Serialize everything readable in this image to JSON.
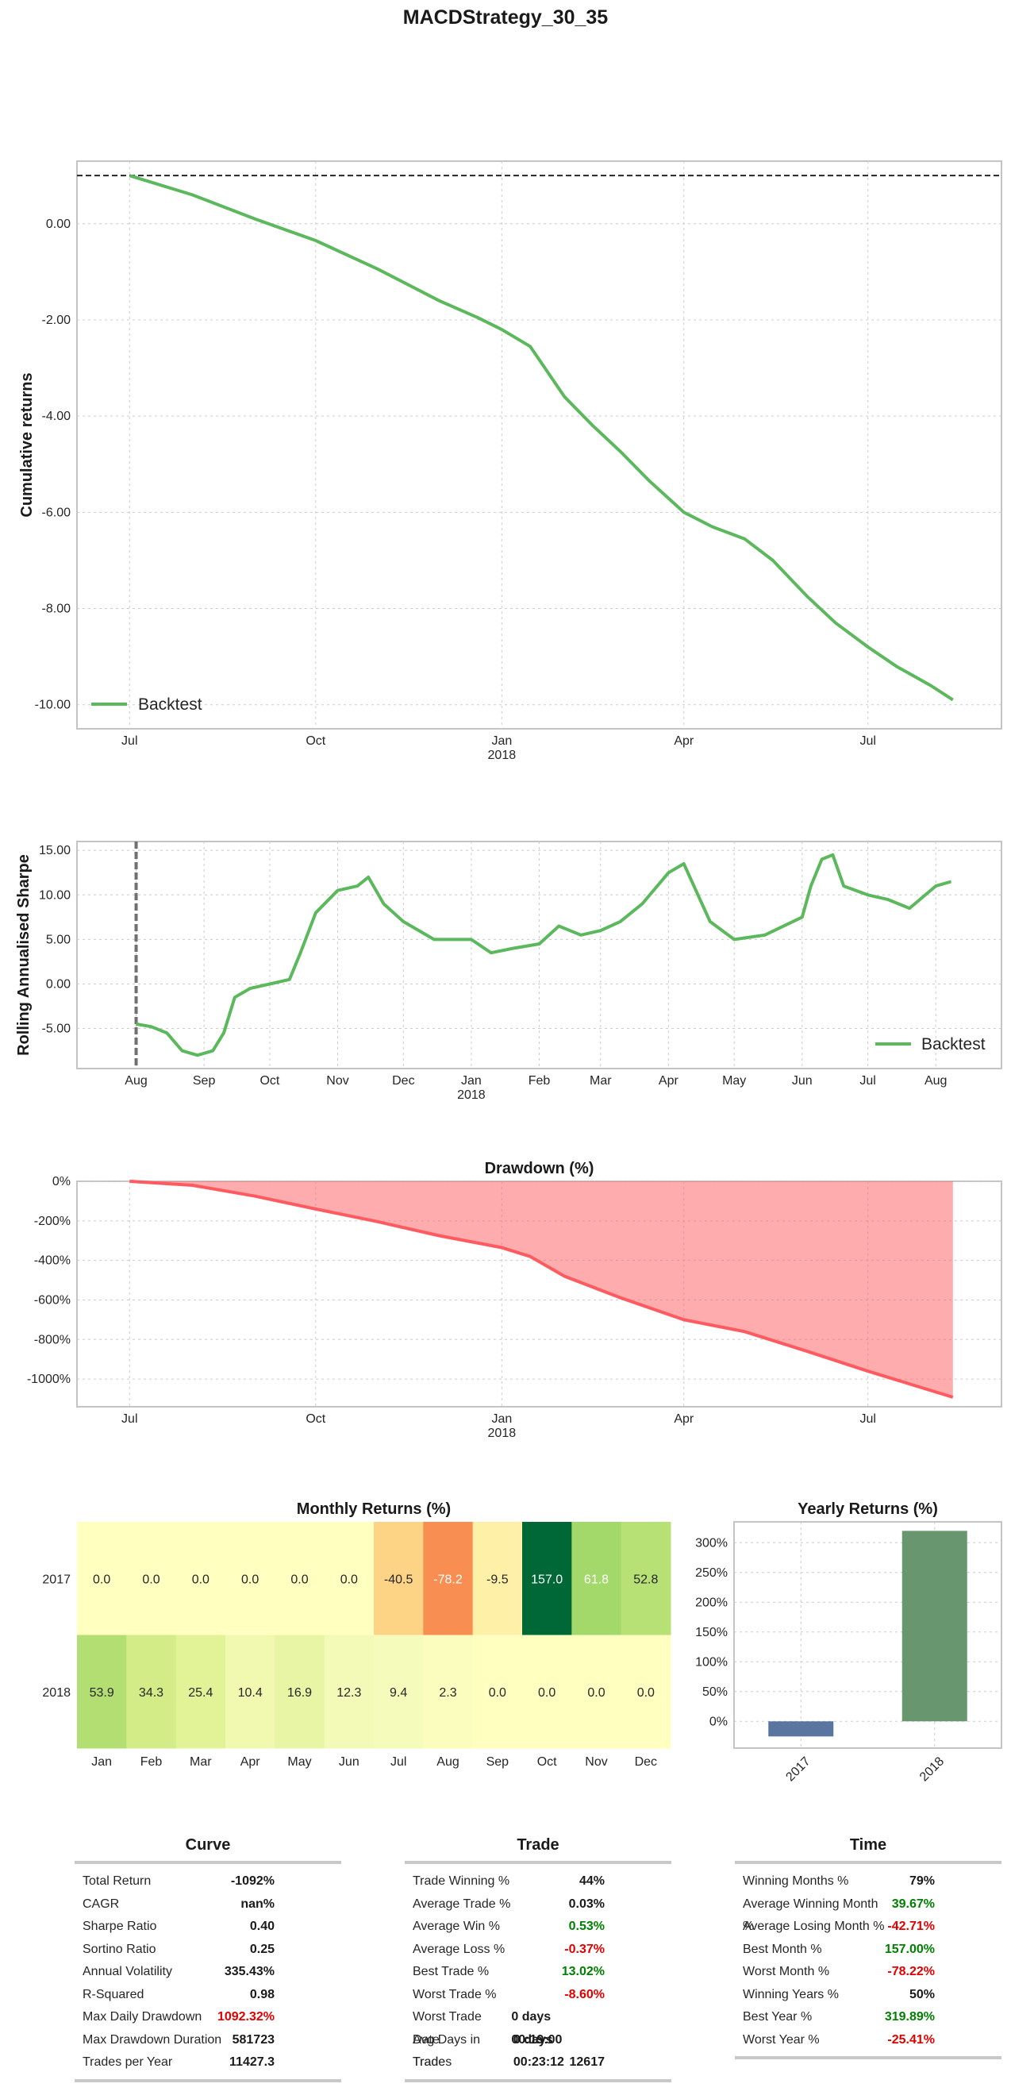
{
  "title": "MACDStrategy_30_35",
  "chart_data": [
    {
      "name": "cumulative-returns",
      "type": "line",
      "ylabel": "Cumulative returns",
      "yticks": [
        "0.00",
        "-2.00",
        "-4.00",
        "-6.00",
        "-8.00",
        "-10.00"
      ],
      "xticks": [
        "Jul",
        "Oct",
        "Jan",
        "Apr",
        "Jul"
      ],
      "xsub": "2018",
      "ylim": [
        -10.5,
        1.3
      ],
      "reference_line": 1.0,
      "legend": "Backtest",
      "legend_position": "lower-left",
      "grid": true,
      "color": "#5cb85c",
      "series": [
        {
          "name": "Backtest",
          "x": [
            "2017-07-01",
            "2017-08-01",
            "2017-09-01",
            "2017-10-01",
            "2017-11-01",
            "2017-12-01",
            "2017-12-20",
            "2018-01-01",
            "2018-01-15",
            "2018-02-01",
            "2018-02-15",
            "2018-03-01",
            "2018-03-15",
            "2018-04-01",
            "2018-04-15",
            "2018-05-01",
            "2018-05-15",
            "2018-06-01",
            "2018-06-15",
            "2018-07-01",
            "2018-07-15",
            "2018-08-01",
            "2018-08-12"
          ],
          "y": [
            1.0,
            0.6,
            0.1,
            -0.35,
            -0.95,
            -1.6,
            -1.95,
            -2.2,
            -2.55,
            -3.6,
            -4.2,
            -4.75,
            -5.35,
            -6.0,
            -6.3,
            -6.55,
            -7.0,
            -7.75,
            -8.3,
            -8.8,
            -9.2,
            -9.6,
            -9.9
          ]
        }
      ]
    },
    {
      "name": "rolling-sharpe",
      "type": "line",
      "ylabel": "Rolling Annualised Sharpe",
      "yticks": [
        "15.00",
        "10.00",
        "5.00",
        "0.00",
        "-5.00"
      ],
      "xticks": [
        "Aug",
        "Sep",
        "Oct",
        "Nov",
        "Dec",
        "Jan",
        "Feb",
        "Mar",
        "Apr",
        "May",
        "Jun",
        "Jul",
        "Aug"
      ],
      "xsub": "2018",
      "ylim": [
        -9.5,
        16
      ],
      "legend": "Backtest",
      "legend_position": "lower-right",
      "grid": true,
      "color": "#5cb85c",
      "series": [
        {
          "name": "Backtest",
          "x": [
            "2017-08-01",
            "2017-08-08",
            "2017-08-15",
            "2017-08-22",
            "2017-08-29",
            "2017-09-05",
            "2017-09-10",
            "2017-09-15",
            "2017-09-22",
            "2017-10-01",
            "2017-10-10",
            "2017-10-15",
            "2017-10-22",
            "2017-11-01",
            "2017-11-10",
            "2017-11-15",
            "2017-11-22",
            "2017-12-01",
            "2017-12-15",
            "2018-01-01",
            "2018-01-10",
            "2018-01-20",
            "2018-02-01",
            "2018-02-10",
            "2018-02-20",
            "2018-03-01",
            "2018-03-10",
            "2018-03-20",
            "2018-04-01",
            "2018-04-08",
            "2018-04-20",
            "2018-05-01",
            "2018-05-15",
            "2018-06-01",
            "2018-06-05",
            "2018-06-10",
            "2018-06-15",
            "2018-06-20",
            "2018-07-01",
            "2018-07-10",
            "2018-07-20",
            "2018-08-01",
            "2018-08-08"
          ],
          "y": [
            -4.5,
            -4.8,
            -5.5,
            -7.5,
            -8.0,
            -7.5,
            -5.5,
            -1.5,
            -0.5,
            0.0,
            0.5,
            3.5,
            8.0,
            10.5,
            11.0,
            12.0,
            9.0,
            7.0,
            5.0,
            5.0,
            3.5,
            4.0,
            4.5,
            6.5,
            5.5,
            6.0,
            7.0,
            9.0,
            12.5,
            13.5,
            7.0,
            5.0,
            5.5,
            7.5,
            11.0,
            14.0,
            14.5,
            11.0,
            10.0,
            9.5,
            8.5,
            11.0,
            11.5
          ]
        }
      ],
      "marker_line_x": "2017-08-01"
    },
    {
      "name": "drawdown",
      "type": "area",
      "title": "Drawdown (%)",
      "yticks": [
        "0%",
        "-200%",
        "-400%",
        "-600%",
        "-800%",
        "-1000%"
      ],
      "xticks": [
        "Jul",
        "Oct",
        "Jan",
        "Apr",
        "Jul"
      ],
      "xsub": "2018",
      "ylim": [
        -1140,
        0
      ],
      "grid": true,
      "color": "#ff5a5f",
      "series": [
        {
          "name": "",
          "x": [
            "2017-07-01",
            "2017-08-01",
            "2017-09-01",
            "2017-10-01",
            "2017-11-01",
            "2017-12-01",
            "2018-01-01",
            "2018-01-15",
            "2018-02-01",
            "2018-03-01",
            "2018-04-01",
            "2018-05-01",
            "2018-06-01",
            "2018-07-01",
            "2018-08-12"
          ],
          "y": [
            0,
            -20,
            -75,
            -140,
            -205,
            -275,
            -335,
            -380,
            -480,
            -590,
            -700,
            -760,
            -860,
            -960,
            -1092
          ]
        }
      ]
    },
    {
      "name": "monthly-returns",
      "type": "heatmap",
      "title": "Monthly Returns (%)",
      "rows": [
        "2017",
        "2018"
      ],
      "columns": [
        "Jan",
        "Feb",
        "Mar",
        "Apr",
        "May",
        "Jun",
        "Jul",
        "Aug",
        "Sep",
        "Oct",
        "Nov",
        "Dec"
      ],
      "values": [
        [
          "0.0",
          "0.0",
          "0.0",
          "0.0",
          "0.0",
          "0.0",
          "-40.5",
          "-78.2",
          "-9.5",
          "157.0",
          "61.8",
          "52.8"
        ],
        [
          "53.9",
          "34.3",
          "25.4",
          "10.4",
          "16.9",
          "12.3",
          "9.4",
          "2.3",
          "0.0",
          "0.0",
          "0.0",
          "0.0"
        ]
      ],
      "colors": [
        [
          "#ffffc0",
          "#ffffc0",
          "#ffffc0",
          "#ffffc0",
          "#ffffc0",
          "#ffffc0",
          "#fdd485",
          "#f88e52",
          "#fff0a8",
          "#006837",
          "#a3d86a",
          "#b7e075"
        ],
        [
          "#b3df72",
          "#d3ec87",
          "#e2f397",
          "#f1f9b1",
          "#e8f5a4",
          "#f3fab7",
          "#f5fbba",
          "#fbfdbe",
          "#ffffc0",
          "#ffffc0",
          "#ffffc0",
          "#ffffc0"
        ]
      ],
      "text_colors": [
        [
          "#262626",
          "#262626",
          "#262626",
          "#262626",
          "#262626",
          "#262626",
          "#262626",
          "#ffffff",
          "#262626",
          "#ffffff",
          "#ffffff",
          "#262626"
        ],
        [
          "#262626",
          "#262626",
          "#262626",
          "#262626",
          "#262626",
          "#262626",
          "#262626",
          "#262626",
          "#262626",
          "#262626",
          "#262626",
          "#262626"
        ]
      ]
    },
    {
      "name": "yearly-returns",
      "type": "bar",
      "title": "Yearly Returns (%)",
      "categories": [
        "2017",
        "2018"
      ],
      "values": [
        -25.41,
        319.89
      ],
      "yticks": [
        "300%",
        "250%",
        "200%",
        "150%",
        "100%",
        "50%",
        "0%"
      ],
      "ylim": [
        -45,
        335
      ],
      "colors": [
        "#5a76a0",
        "#68966e"
      ],
      "grid": true
    }
  ],
  "stats": {
    "curve": {
      "title": "Curve",
      "rows": [
        {
          "label": "Total Return",
          "value": "-1092%",
          "color": "#1a1a1a"
        },
        {
          "label": "CAGR",
          "value": "nan%",
          "color": "#1a1a1a"
        },
        {
          "label": "Sharpe Ratio",
          "value": "0.40",
          "color": "#1a1a1a"
        },
        {
          "label": "Sortino Ratio",
          "value": "0.25",
          "color": "#1a1a1a"
        },
        {
          "label": "Annual Volatility",
          "value": "335.43%",
          "color": "#1a1a1a"
        },
        {
          "label": "R-Squared",
          "value": "0.98",
          "color": "#1a1a1a"
        },
        {
          "label": "Max Daily Drawdown",
          "value": "1092.32%",
          "color": "#e00000"
        },
        {
          "label": "Max Drawdown Duration",
          "value": "581723",
          "color": "#1a1a1a"
        },
        {
          "label": "Trades per Year",
          "value": "11427.3",
          "color": "#1a1a1a"
        }
      ]
    },
    "trade": {
      "title": "Trade",
      "rows": [
        {
          "label": "Trade Winning %",
          "value": "44%",
          "color": "#1a1a1a"
        },
        {
          "label": "Average Trade %",
          "value": "0.03%",
          "color": "#1a1a1a"
        },
        {
          "label": "Average Win %",
          "value": "0.53%",
          "color": "#008000"
        },
        {
          "label": "Average Loss %",
          "value": "-0.37%",
          "color": "#e00000"
        },
        {
          "label": "Best Trade %",
          "value": "13.02%",
          "color": "#008000"
        },
        {
          "label": "Worst Trade %",
          "value": "-8.60%",
          "color": "#e00000"
        },
        {
          "label": "Worst Trade Date",
          "value": "0 days 00:19:00",
          "color": "#1a1a1a"
        },
        {
          "label": "Avg Days in Trade",
          "value": "0 days 00:23:12",
          "color": "#1a1a1a"
        },
        {
          "label": "Trades",
          "value": "12617",
          "color": "#1a1a1a"
        }
      ]
    },
    "time": {
      "title": "Time",
      "rows": [
        {
          "label": "Winning Months %",
          "value": "79%",
          "color": "#1a1a1a"
        },
        {
          "label": "Average Winning Month %",
          "value": "39.67%",
          "color": "#008000"
        },
        {
          "label": "Average Losing Month %",
          "value": "-42.71%",
          "color": "#e00000"
        },
        {
          "label": "Best Month %",
          "value": "157.00%",
          "color": "#008000"
        },
        {
          "label": "Worst Month %",
          "value": "-78.22%",
          "color": "#e00000"
        },
        {
          "label": "Winning Years %",
          "value": "50%",
          "color": "#1a1a1a"
        },
        {
          "label": "Best Year %",
          "value": "319.89%",
          "color": "#008000"
        },
        {
          "label": "Worst Year %",
          "value": "-25.41%",
          "color": "#e00000"
        }
      ]
    }
  }
}
